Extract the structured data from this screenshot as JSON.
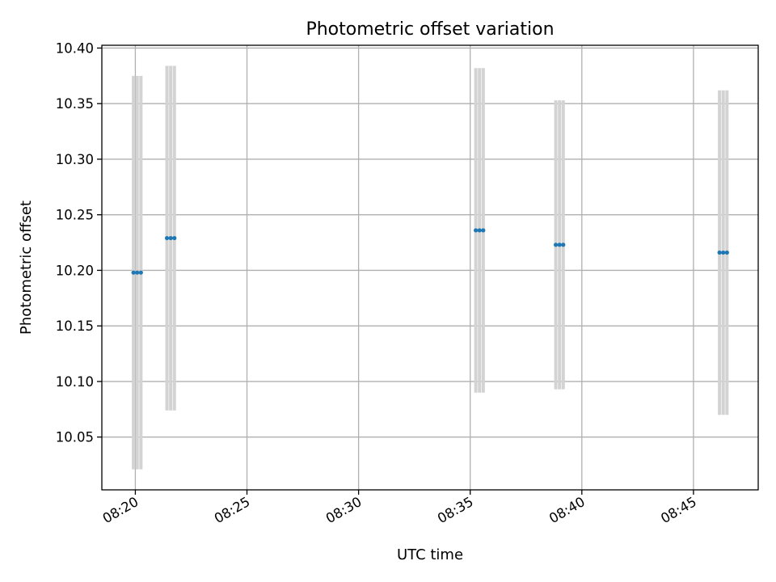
{
  "chart_data": {
    "type": "scatter",
    "title": "Photometric offset variation",
    "xlabel": "UTC time",
    "ylabel": "Photometric offset",
    "x_ticks": [
      "08:20",
      "08:25",
      "08:30",
      "08:35",
      "08:40",
      "08:45"
    ],
    "y_ticks": [
      "10.05",
      "10.10",
      "10.15",
      "10.20",
      "10.25",
      "10.30",
      "10.35",
      "10.40"
    ],
    "xlim": [
      "08:18:30",
      "08:47:54"
    ],
    "ylim": [
      10.0025,
      10.4025
    ],
    "grid": true,
    "colors": {
      "point": "#1f77b4",
      "errorbar": "#d3d3d3",
      "grid": "#b0b0b0",
      "axes": "#000000"
    },
    "series": [
      {
        "points": [
          {
            "time": "08:19:55",
            "y": 10.198,
            "yerr": 0.177
          },
          {
            "time": "08:20:05",
            "y": 10.198,
            "yerr": 0.177
          },
          {
            "time": "08:20:15",
            "y": 10.198,
            "yerr": 0.177
          },
          {
            "time": "08:21:25",
            "y": 10.229,
            "yerr": 0.155
          },
          {
            "time": "08:21:35",
            "y": 10.229,
            "yerr": 0.155
          },
          {
            "time": "08:21:45",
            "y": 10.229,
            "yerr": 0.155
          },
          {
            "time": "08:35:15",
            "y": 10.236,
            "yerr": 0.146
          },
          {
            "time": "08:35:25",
            "y": 10.236,
            "yerr": 0.146
          },
          {
            "time": "08:35:35",
            "y": 10.236,
            "yerr": 0.146
          },
          {
            "time": "08:38:50",
            "y": 10.223,
            "yerr": 0.13
          },
          {
            "time": "08:39:00",
            "y": 10.223,
            "yerr": 0.13
          },
          {
            "time": "08:39:10",
            "y": 10.223,
            "yerr": 0.13
          },
          {
            "time": "08:46:10",
            "y": 10.216,
            "yerr": 0.146
          },
          {
            "time": "08:46:20",
            "y": 10.216,
            "yerr": 0.146
          },
          {
            "time": "08:46:30",
            "y": 10.216,
            "yerr": 0.146
          }
        ]
      }
    ]
  }
}
